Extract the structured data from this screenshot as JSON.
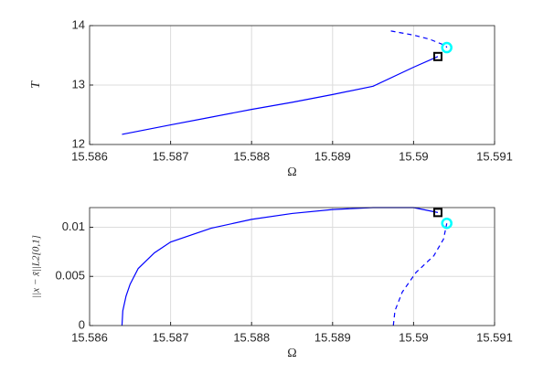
{
  "chart_data": [
    {
      "type": "line",
      "xlabel": "Ω",
      "ylabel": "T",
      "xlim": [
        15.586,
        15.591
      ],
      "xticks": [
        15.586,
        15.587,
        15.588,
        15.589,
        15.59,
        15.591
      ],
      "ylim": [
        12,
        14
      ],
      "yticks": [
        12,
        13,
        14
      ],
      "grid": true,
      "series": [
        {
          "color": "#0000ff",
          "style": "solid",
          "marker": "none",
          "x": [
            15.5864,
            15.587,
            15.5875,
            15.588,
            15.5885,
            15.589,
            15.5895,
            15.59,
            15.5903
          ],
          "values": [
            12.17,
            12.33,
            12.46,
            12.59,
            12.71,
            12.84,
            12.98,
            13.3,
            13.48
          ]
        },
        {
          "color": "#0000ff",
          "style": "dashed",
          "marker": "none",
          "x": [
            15.58972,
            15.59,
            15.5902,
            15.5904,
            15.59041
          ],
          "values": [
            13.91,
            13.84,
            13.77,
            13.66,
            13.63
          ]
        },
        {
          "color": "#000000",
          "style": "none",
          "marker": "square",
          "x": [
            15.5903
          ],
          "values": [
            13.48
          ]
        },
        {
          "color": "#00ffff",
          "style": "none",
          "marker": "circle",
          "x": [
            15.59041
          ],
          "values": [
            13.63
          ]
        }
      ]
    },
    {
      "type": "line",
      "xlabel": "Ω",
      "ylabel": "||x − x̃||L2[0,1]",
      "xlim": [
        15.586,
        15.591
      ],
      "xticks": [
        15.586,
        15.587,
        15.588,
        15.589,
        15.59,
        15.591
      ],
      "ylim": [
        0,
        0.012
      ],
      "yticks": [
        0,
        0.005,
        0.01
      ],
      "grid": true,
      "series": [
        {
          "color": "#0000ff",
          "style": "solid",
          "marker": "none",
          "x": [
            15.5864,
            15.58641,
            15.58645,
            15.5865,
            15.5866,
            15.5868,
            15.587,
            15.5875,
            15.588,
            15.5885,
            15.589,
            15.5895,
            15.59,
            15.5903
          ],
          "values": [
            0,
            0.0015,
            0.003,
            0.0042,
            0.0058,
            0.0074,
            0.0085,
            0.0099,
            0.0108,
            0.0114,
            0.0118,
            0.012,
            0.012,
            0.0115
          ]
        },
        {
          "color": "#0000ff",
          "style": "dashed",
          "marker": "none",
          "x": [
            15.58975,
            15.58977,
            15.58986,
            15.59003,
            15.59025,
            15.59037,
            15.59041
          ],
          "values": [
            0,
            0.0015,
            0.0034,
            0.0054,
            0.0071,
            0.0088,
            0.0104
          ]
        },
        {
          "color": "#000000",
          "style": "none",
          "marker": "square",
          "x": [
            15.5903
          ],
          "values": [
            0.0115
          ]
        },
        {
          "color": "#00ffff",
          "style": "none",
          "marker": "circle",
          "x": [
            15.59041
          ],
          "values": [
            0.0104
          ]
        }
      ]
    }
  ]
}
